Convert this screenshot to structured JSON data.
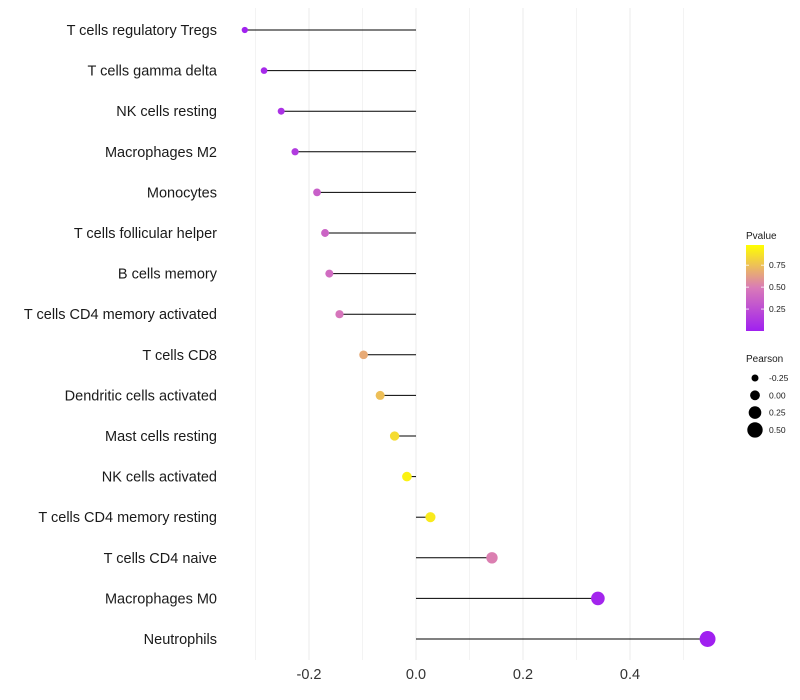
{
  "chart_data": {
    "type": "lollipop",
    "title": "",
    "xlabel": "",
    "ylabel": "",
    "xlim": [
      -0.33,
      0.56
    ],
    "x_ticks": [
      -0.2,
      0.0,
      0.2,
      0.4
    ],
    "x_tick_labels": [
      "-0.2",
      "0.0",
      "0.2",
      "0.4"
    ],
    "grid": "vertical",
    "categories": [
      "T cells regulatory  Tregs",
      "T cells gamma delta",
      "NK cells resting",
      "Macrophages M2",
      "Monocytes",
      "T cells follicular helper",
      "B cells memory",
      "T cells CD4 memory activated",
      "T cells CD8",
      "Dendritic cells activated",
      "Mast cells resting",
      "NK cells activated",
      "T cells CD4 memory resting",
      "T cells CD4 naive",
      "Macrophages M0",
      "Neutrophils"
    ],
    "pearson": [
      -0.32,
      -0.284,
      -0.252,
      -0.226,
      -0.185,
      -0.17,
      -0.162,
      -0.143,
      -0.098,
      -0.067,
      -0.04,
      -0.017,
      0.027,
      0.142,
      0.34,
      0.545
    ],
    "pvalue": [
      0.01,
      0.05,
      0.1,
      0.15,
      0.35,
      0.38,
      0.42,
      0.47,
      0.68,
      0.76,
      0.87,
      0.95,
      0.92,
      0.52,
      0.03,
      0.0
    ],
    "color_legend": {
      "title": "Pvalue",
      "ticks": [
        0.75,
        0.5,
        0.25
      ],
      "tick_labels": [
        "0.75",
        "0.50",
        "0.25"
      ],
      "colors": {
        "low": "#a020f0",
        "mid": "#d97ab8",
        "high": "#ffff00"
      }
    },
    "size_legend": {
      "title": "Pearson",
      "values": [
        -0.25,
        0.0,
        0.25,
        0.5
      ],
      "labels": [
        "-0.25",
        "0.00",
        "0.25",
        "0.50"
      ]
    }
  }
}
